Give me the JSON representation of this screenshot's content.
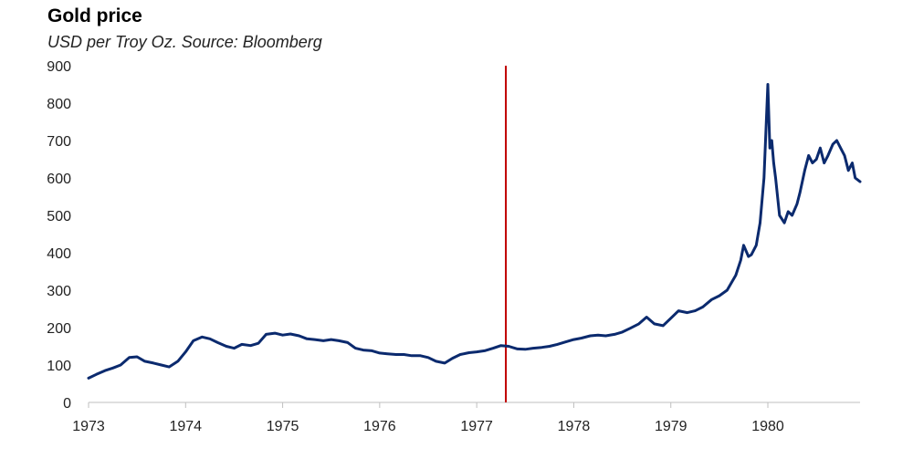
{
  "chart_data": {
    "type": "line",
    "title": "Gold price",
    "subtitle": "USD per Troy Oz. Source: Bloomberg",
    "xlabel": "",
    "ylabel": "",
    "ylim": [
      0,
      900
    ],
    "xlim": [
      1973.0,
      1980.95
    ],
    "yticks": [
      0,
      100,
      200,
      300,
      400,
      500,
      600,
      700,
      800,
      900
    ],
    "xticks": [
      "1973",
      "1974",
      "1975",
      "1976",
      "1977",
      "1978",
      "1979",
      "1980"
    ],
    "marker_year": 1977.3,
    "colors": {
      "line": "#0b2a6e",
      "marker": "#c00000",
      "axis": "#bfbfbf"
    },
    "series": [
      {
        "name": "Gold price",
        "x": [
          1973.0,
          1973.08,
          1973.17,
          1973.25,
          1973.33,
          1973.42,
          1973.5,
          1973.58,
          1973.67,
          1973.75,
          1973.83,
          1973.92,
          1974.0,
          1974.08,
          1974.17,
          1974.25,
          1974.33,
          1974.42,
          1974.5,
          1974.58,
          1974.67,
          1974.75,
          1974.83,
          1974.92,
          1975.0,
          1975.08,
          1975.17,
          1975.25,
          1975.33,
          1975.42,
          1975.5,
          1975.58,
          1975.67,
          1975.75,
          1975.83,
          1975.92,
          1976.0,
          1976.08,
          1976.17,
          1976.25,
          1976.33,
          1976.42,
          1976.5,
          1976.58,
          1976.67,
          1976.75,
          1976.83,
          1976.92,
          1977.0,
          1977.08,
          1977.17,
          1977.25,
          1977.33,
          1977.42,
          1977.5,
          1977.58,
          1977.67,
          1977.75,
          1977.83,
          1977.92,
          1978.0,
          1978.08,
          1978.17,
          1978.25,
          1978.33,
          1978.42,
          1978.5,
          1978.58,
          1978.67,
          1978.75,
          1978.83,
          1978.92,
          1979.0,
          1979.08,
          1979.17,
          1979.25,
          1979.33,
          1979.42,
          1979.5,
          1979.58,
          1979.67,
          1979.72,
          1979.75,
          1979.8,
          1979.83,
          1979.88,
          1979.92,
          1979.96,
          1980.0,
          1980.02,
          1980.04,
          1980.06,
          1980.08,
          1980.12,
          1980.17,
          1980.21,
          1980.25,
          1980.3,
          1980.33,
          1980.38,
          1980.42,
          1980.46,
          1980.5,
          1980.54,
          1980.58,
          1980.62,
          1980.67,
          1980.71,
          1980.75,
          1980.79,
          1980.83,
          1980.87,
          1980.9,
          1980.95
        ],
        "y": [
          65,
          75,
          85,
          92,
          100,
          120,
          122,
          110,
          105,
          100,
          95,
          110,
          135,
          165,
          175,
          170,
          160,
          150,
          145,
          155,
          152,
          158,
          182,
          185,
          180,
          183,
          178,
          170,
          168,
          165,
          168,
          165,
          160,
          145,
          140,
          138,
          132,
          130,
          128,
          128,
          125,
          125,
          120,
          110,
          105,
          118,
          128,
          133,
          135,
          138,
          145,
          152,
          150,
          143,
          142,
          145,
          147,
          150,
          155,
          162,
          168,
          172,
          178,
          180,
          178,
          182,
          188,
          198,
          210,
          228,
          210,
          205,
          225,
          245,
          240,
          245,
          255,
          275,
          285,
          300,
          340,
          380,
          420,
          390,
          395,
          420,
          480,
          600,
          850,
          680,
          700,
          640,
          600,
          500,
          480,
          510,
          500,
          530,
          560,
          620,
          660,
          640,
          650,
          680,
          640,
          660,
          690,
          700,
          680,
          660,
          620,
          640,
          600,
          590
        ]
      }
    ]
  },
  "header": {
    "title": "Gold price",
    "subtitle": "USD per Troy Oz. Source: Bloomberg"
  }
}
